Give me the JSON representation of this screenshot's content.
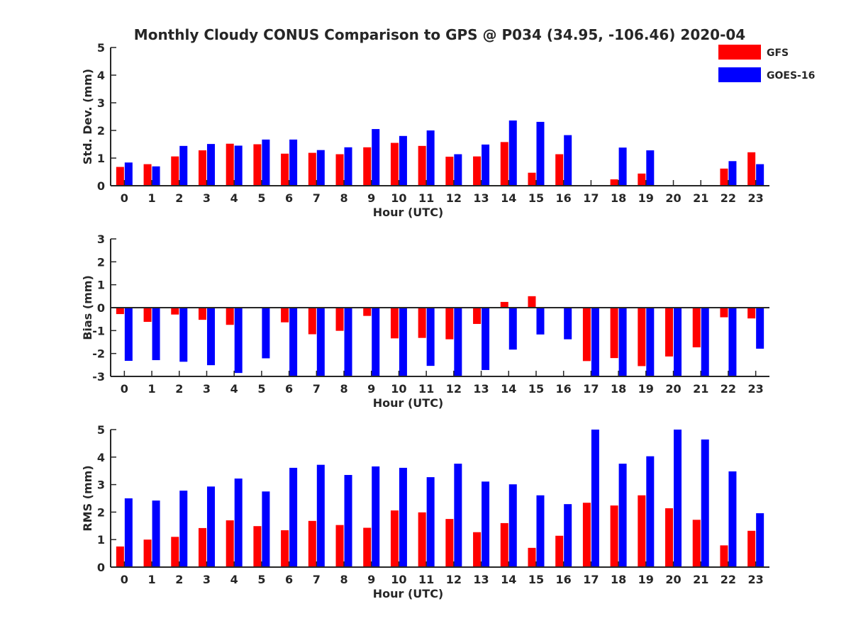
{
  "figure": {
    "title": "Monthly Cloudy CONUS Comparison to GPS @ P034 (34.95, -106.46) 2020-04",
    "legend": [
      {
        "label": "GFS",
        "color": "#ff0000"
      },
      {
        "label": "GOES-16",
        "color": "#0000ff"
      }
    ]
  },
  "chart_data": [
    {
      "type": "bar",
      "title": "Monthly Cloudy CONUS Comparison to GPS @ P034 (34.95, -106.46) 2020-04",
      "xlabel": "Hour (UTC)",
      "ylabel": "Std. Dev. (mm)",
      "ylim": [
        0,
        5
      ],
      "yticks": [
        0,
        1,
        2,
        3,
        4,
        5
      ],
      "categories": [
        "0",
        "1",
        "2",
        "3",
        "4",
        "5",
        "6",
        "7",
        "8",
        "9",
        "10",
        "11",
        "12",
        "13",
        "14",
        "15",
        "16",
        "17",
        "18",
        "19",
        "20",
        "21",
        "22",
        "23"
      ],
      "legend_position": "top-right",
      "grid": false,
      "series": [
        {
          "name": "GFS",
          "color": "#ff0000",
          "values": [
            0.68,
            0.78,
            1.06,
            1.28,
            1.52,
            1.5,
            1.16,
            1.19,
            1.14,
            1.39,
            1.55,
            1.44,
            1.05,
            1.06,
            1.58,
            0.47,
            1.14,
            null,
            0.23,
            0.44,
            null,
            null,
            0.62,
            1.21
          ]
        },
        {
          "name": "GOES-16",
          "color": "#0000ff",
          "values": [
            0.84,
            0.7,
            1.44,
            1.51,
            1.45,
            1.67,
            1.67,
            1.29,
            1.39,
            2.05,
            1.8,
            2.0,
            1.14,
            1.49,
            2.36,
            2.31,
            1.83,
            null,
            1.38,
            1.28,
            null,
            null,
            0.89,
            0.78
          ]
        }
      ]
    },
    {
      "type": "bar",
      "xlabel": "Hour (UTC)",
      "ylabel": "Bias (mm)",
      "ylim": [
        -3,
        3
      ],
      "yticks": [
        -3,
        -2,
        -1,
        0,
        1,
        2,
        3
      ],
      "categories": [
        "0",
        "1",
        "2",
        "3",
        "4",
        "5",
        "6",
        "7",
        "8",
        "9",
        "10",
        "11",
        "12",
        "13",
        "14",
        "15",
        "16",
        "17",
        "18",
        "19",
        "20",
        "21",
        "22",
        "23"
      ],
      "grid": false,
      "zero_line": true,
      "series": [
        {
          "name": "GFS",
          "color": "#ff0000",
          "values": [
            -0.28,
            -0.62,
            -0.3,
            -0.53,
            -0.75,
            null,
            -0.64,
            -1.16,
            -1.01,
            -0.36,
            -1.34,
            -1.32,
            -1.38,
            -0.71,
            0.25,
            0.5,
            0.02,
            -2.33,
            -2.2,
            -2.55,
            -2.13,
            -1.73,
            -0.42,
            -0.47
          ]
        },
        {
          "name": "GOES-16",
          "color": "#0000ff",
          "values": [
            -2.32,
            -2.29,
            -2.36,
            -2.51,
            -2.85,
            -2.21,
            -3.0,
            -3.0,
            -3.0,
            -3.0,
            -3.0,
            -2.54,
            -3.0,
            -2.72,
            -1.83,
            -1.17,
            -1.38,
            -3.0,
            -3.0,
            -3.0,
            -3.0,
            -3.0,
            -3.0,
            -1.79
          ]
        }
      ]
    },
    {
      "type": "bar",
      "xlabel": "Hour (UTC)",
      "ylabel": "RMS (mm)",
      "ylim": [
        0,
        5
      ],
      "yticks": [
        0,
        1,
        2,
        3,
        4,
        5
      ],
      "categories": [
        "0",
        "1",
        "2",
        "3",
        "4",
        "5",
        "6",
        "7",
        "8",
        "9",
        "10",
        "11",
        "12",
        "13",
        "14",
        "15",
        "16",
        "17",
        "18",
        "19",
        "20",
        "21",
        "22",
        "23"
      ],
      "grid": false,
      "series": [
        {
          "name": "GFS",
          "color": "#ff0000",
          "values": [
            0.75,
            1.0,
            1.1,
            1.42,
            1.7,
            1.49,
            1.34,
            1.68,
            1.53,
            1.43,
            2.06,
            1.99,
            1.75,
            1.27,
            1.6,
            0.7,
            1.14,
            2.34,
            2.24,
            2.61,
            2.14,
            1.72,
            0.79,
            1.32
          ]
        },
        {
          "name": "GOES-16",
          "color": "#0000ff",
          "values": [
            2.5,
            2.42,
            2.78,
            2.93,
            3.22,
            2.75,
            3.61,
            3.72,
            3.35,
            3.66,
            3.61,
            3.27,
            3.76,
            3.11,
            3.01,
            2.61,
            2.29,
            5.0,
            3.76,
            4.03,
            5.0,
            4.64,
            3.48,
            1.96
          ]
        }
      ]
    }
  ]
}
